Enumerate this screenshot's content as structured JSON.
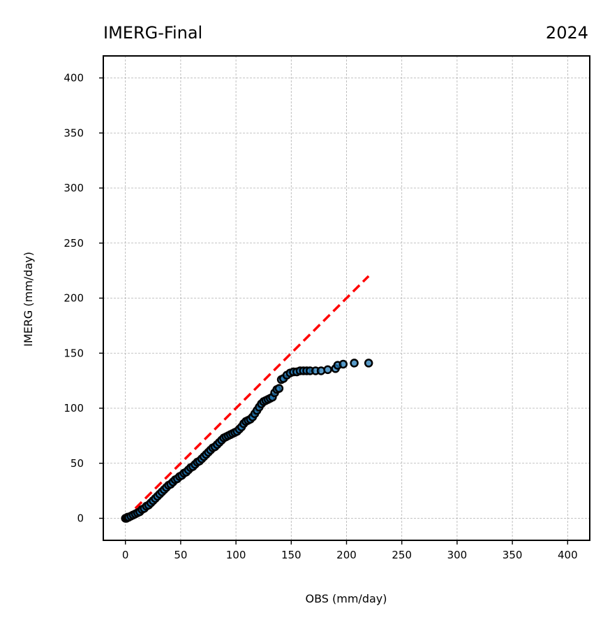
{
  "chart_data": {
    "type": "scatter",
    "title_left": "IMERG-Final",
    "title_right": "2024",
    "xlabel": "OBS (mm/day)",
    "ylabel": "IMERG (mm/day)",
    "xlim": [
      -20,
      420
    ],
    "ylim": [
      -20,
      420
    ],
    "xticks": [
      0,
      50,
      100,
      150,
      200,
      250,
      300,
      350,
      400
    ],
    "yticks": [
      0,
      50,
      100,
      150,
      200,
      250,
      300,
      350,
      400
    ],
    "grid": true,
    "reference_line": {
      "x": [
        0,
        220
      ],
      "y": [
        0,
        220
      ],
      "color": "#ff0000",
      "style": "dashed"
    },
    "marker_face_color": "#1f77b4",
    "marker_edge_color": "#000000",
    "series": [
      {
        "x": [
          0,
          1,
          2,
          3,
          5,
          7,
          9,
          11,
          13,
          15,
          17,
          19,
          21,
          23,
          25,
          27,
          29,
          31,
          33,
          35,
          37,
          39,
          41,
          43,
          45,
          47,
          49,
          51,
          53,
          55,
          57,
          59,
          61,
          63,
          65,
          67,
          69,
          71,
          73,
          75,
          77,
          79,
          81,
          83,
          85,
          87,
          89,
          91,
          93,
          95,
          97,
          99,
          101,
          103,
          105,
          107,
          109,
          111,
          113,
          115,
          117,
          119,
          121,
          123,
          125,
          127,
          129,
          131,
          133,
          135,
          137,
          139,
          141,
          143,
          146,
          149,
          152,
          155,
          158,
          161,
          164,
          167,
          172,
          177,
          183,
          190,
          192,
          197,
          207,
          220
        ],
        "y": [
          0,
          0,
          1,
          1,
          2,
          3,
          4,
          5,
          6,
          8,
          9,
          11,
          12,
          14,
          16,
          18,
          20,
          22,
          24,
          26,
          28,
          30,
          31,
          33,
          35,
          36,
          38,
          39,
          41,
          42,
          44,
          46,
          47,
          49,
          51,
          52,
          54,
          56,
          58,
          60,
          62,
          64,
          65,
          67,
          69,
          71,
          73,
          74,
          75,
          76,
          77,
          78,
          79,
          81,
          83,
          86,
          88,
          89,
          90,
          92,
          95,
          98,
          101,
          104,
          106,
          107,
          108,
          109,
          110,
          114,
          117,
          118,
          126,
          127,
          130,
          132,
          133,
          133,
          134,
          134,
          134,
          134,
          134,
          134,
          135,
          136,
          139,
          140,
          141,
          141
        ]
      }
    ]
  }
}
